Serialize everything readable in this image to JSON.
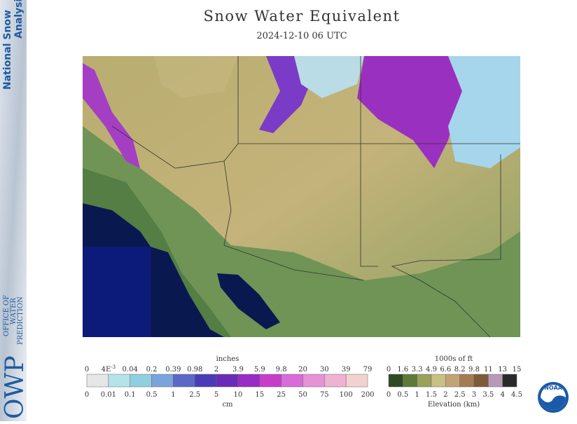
{
  "sidebar": {
    "title_lines": [
      "National Snow",
      "Analysis"
    ],
    "org_abbr": "OWP",
    "org_name": [
      "OFFICE OF",
      "WATER",
      "PREDICTION"
    ]
  },
  "header": {
    "title": "Snow Water Equivalent",
    "subtitle": "2024-12-10 06 UTC"
  },
  "swe_legend": {
    "top_unit": "inches",
    "top_labels": [
      "0",
      {
        "base": "4E",
        "exponent": "-3"
      },
      "0.04",
      "0.2",
      "0.39",
      "0.98",
      "2",
      "3.9",
      "5.9",
      "9.8",
      "20",
      "30",
      "39",
      "79"
    ],
    "bottom_labels": [
      "0",
      "0.01",
      "0.1",
      "0.5",
      "1",
      "2.5",
      "5",
      "10",
      "15",
      "25",
      "50",
      "75",
      "100",
      "200"
    ],
    "bottom_unit": "cm",
    "colors": [
      "#e6e6e6",
      "#b4e4ea",
      "#8fcfe0",
      "#7aa4dc",
      "#5c68c8",
      "#4a3cb6",
      "#6a2cb6",
      "#982cc6",
      "#c63ec8",
      "#d86cd8",
      "#e692d6",
      "#eeb2d2",
      "#f2d2d0"
    ]
  },
  "elevation_legend": {
    "top_unit": "1000s of ft",
    "top_labels": [
      "0",
      "1.6",
      "3.3",
      "4.9",
      "6.6",
      "8.2",
      "9.8",
      "11",
      "13",
      "15"
    ],
    "bottom_labels": [
      "0",
      "0.5",
      "1",
      "1.5",
      "2",
      "2.5",
      "3",
      "3.5",
      "4",
      "4.5"
    ],
    "bottom_unit": "Elevation (km)",
    "colors": [
      "#2f4a22",
      "#5f7a38",
      "#9aa25a",
      "#c8c084",
      "#c2a474",
      "#a47c52",
      "#7e5a3a",
      "#b89ab8",
      "#2a2a2a"
    ]
  },
  "logo": "NOAA"
}
